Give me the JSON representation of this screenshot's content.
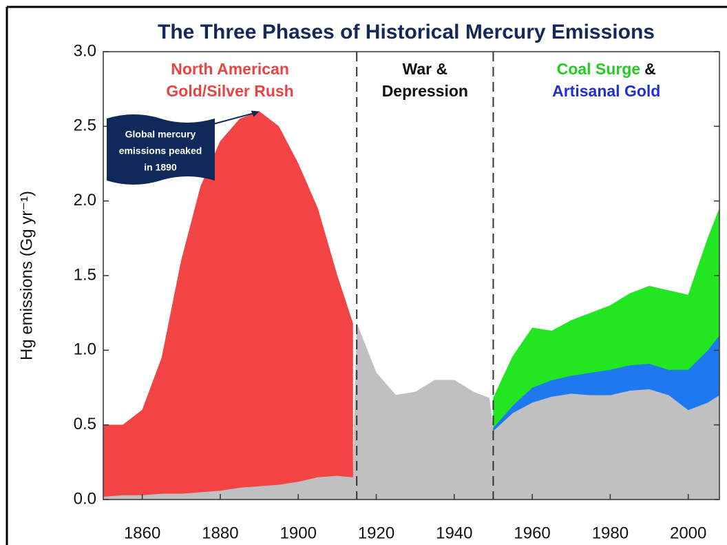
{
  "chart_data": {
    "type": "stacked_area",
    "title": "The Three Phases of Historical Mercury Emissions",
    "y_label": "Hg emissions (Gg yr⁻¹)",
    "x": [
      1850,
      1855,
      1860,
      1865,
      1870,
      1875,
      1880,
      1885,
      1890,
      1895,
      1900,
      1905,
      1910,
      1914,
      1915,
      1920,
      1925,
      1930,
      1935,
      1940,
      1945,
      1949,
      1950,
      1955,
      1960,
      1965,
      1970,
      1975,
      1980,
      1985,
      1990,
      1995,
      2000,
      2005,
      2008
    ],
    "series": [
      {
        "color": "#c0c0c0",
        "values": [
          0.02,
          0.03,
          0.03,
          0.04,
          0.04,
          0.05,
          0.06,
          0.08,
          0.09,
          0.1,
          0.12,
          0.15,
          0.16,
          0.15,
          1.18,
          0.85,
          0.7,
          0.72,
          0.8,
          0.8,
          0.72,
          0.68,
          0.46,
          0.58,
          0.65,
          0.69,
          0.71,
          0.7,
          0.7,
          0.73,
          0.74,
          0.7,
          0.6,
          0.65,
          0.7
        ]
      },
      {
        "name": "North American Gold/Silver Rush",
        "color": "#f24444",
        "values": [
          0.48,
          0.47,
          0.57,
          0.91,
          1.56,
          2.05,
          2.34,
          2.47,
          2.51,
          2.4,
          2.13,
          1.8,
          1.34,
          1.03,
          null,
          null,
          null,
          null,
          null,
          null,
          null,
          null,
          null,
          null,
          null,
          null,
          null,
          null,
          null,
          null,
          null,
          null,
          null,
          null,
          null
        ]
      },
      {
        "name": "Artisanal Gold",
        "color": "#1e78f0",
        "values": [
          null,
          null,
          null,
          null,
          null,
          null,
          null,
          null,
          null,
          null,
          null,
          null,
          null,
          null,
          null,
          null,
          null,
          null,
          null,
          null,
          null,
          null,
          0.02,
          0.05,
          0.1,
          0.11,
          0.12,
          0.15,
          0.17,
          0.17,
          0.17,
          0.17,
          0.27,
          0.35,
          0.4
        ]
      },
      {
        "name": "Coal Surge",
        "color": "#22e622",
        "values": [
          null,
          null,
          null,
          null,
          null,
          null,
          null,
          null,
          null,
          null,
          null,
          null,
          null,
          null,
          null,
          null,
          null,
          null,
          null,
          null,
          null,
          null,
          0.2,
          0.33,
          0.4,
          0.33,
          0.37,
          0.4,
          0.43,
          0.48,
          0.52,
          0.53,
          0.5,
          0.75,
          0.85
        ]
      }
    ],
    "xlim": [
      1850,
      2008
    ],
    "ylim": [
      0,
      3
    ],
    "xticks": [
      1860,
      1880,
      1900,
      1920,
      1940,
      1960,
      1980,
      2000
    ],
    "yticks": [
      {
        "value": 0,
        "label": "0.0"
      },
      0.5,
      {
        "value": 1,
        "label": "1.0"
      },
      1.5,
      {
        "value": 2,
        "label": "2.0"
      },
      2.5,
      {
        "value": 3,
        "label": "3.0"
      }
    ],
    "dividers": [
      1915,
      1950
    ],
    "phase_labels": [
      [
        [
          {
            "text": "North American",
            "color": "#e84444"
          }
        ],
        [
          {
            "text": "Gold/Silver Rush",
            "color": "#e84444"
          }
        ]
      ],
      [
        [
          {
            "text": "War &",
            "color": "#111111"
          }
        ],
        [
          {
            "text": "Depression",
            "color": "#111111"
          }
        ]
      ],
      [
        [
          {
            "text": "Coal Surge",
            "color": "#22cc22"
          },
          {
            "text": "&",
            "color": "#111111"
          }
        ],
        [
          {
            "text": "Artisanal Gold",
            "color": "#2030d0"
          }
        ]
      ]
    ],
    "annotation": {
      "lines": [
        "Global mercury",
        "emissions peaked",
        "in 1890"
      ],
      "x": 1890,
      "y": 2.6
    }
  }
}
